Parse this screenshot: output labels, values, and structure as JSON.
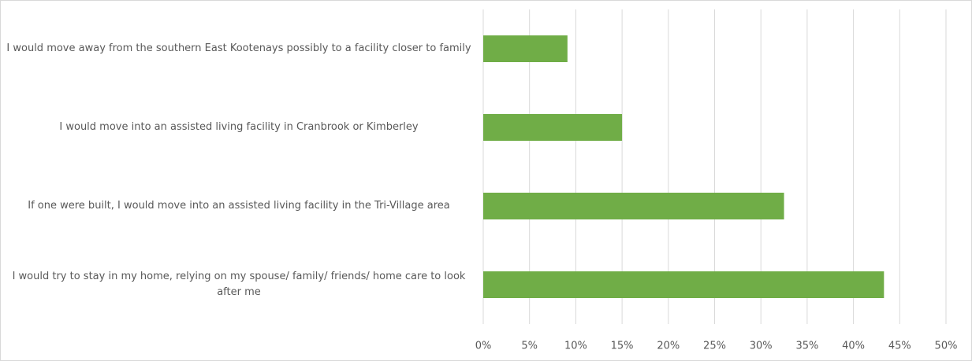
{
  "chart_data": {
    "type": "bar",
    "orientation": "horizontal",
    "categories": [
      "I would move away from the southern East Kootenays possibly to a facility closer to family",
      "I would move into an assisted living facility in Cranbrook or Kimberley",
      "If one were built, I would move into an assisted living facility in the Tri-Village area",
      "I would try to stay in my home, relying on my spouse/ family/ friends/ home care to look after me"
    ],
    "values": [
      9.1,
      15,
      32.5,
      43.3
    ],
    "color": "#70ad47",
    "xlim": [
      0,
      50
    ],
    "xticks": [
      {
        "value": 0,
        "label": "0%"
      },
      {
        "value": 5,
        "label": "5%"
      },
      {
        "value": 10,
        "label": "10%"
      },
      {
        "value": 15,
        "label": "15%"
      },
      {
        "value": 20,
        "label": "20%"
      },
      {
        "value": 25,
        "label": "25%"
      },
      {
        "value": 30,
        "label": "30%"
      },
      {
        "value": 35,
        "label": "35%"
      },
      {
        "value": 40,
        "label": "40%"
      },
      {
        "value": 45,
        "label": "45%"
      },
      {
        "value": 50,
        "label": "50%"
      }
    ],
    "grid": true
  }
}
